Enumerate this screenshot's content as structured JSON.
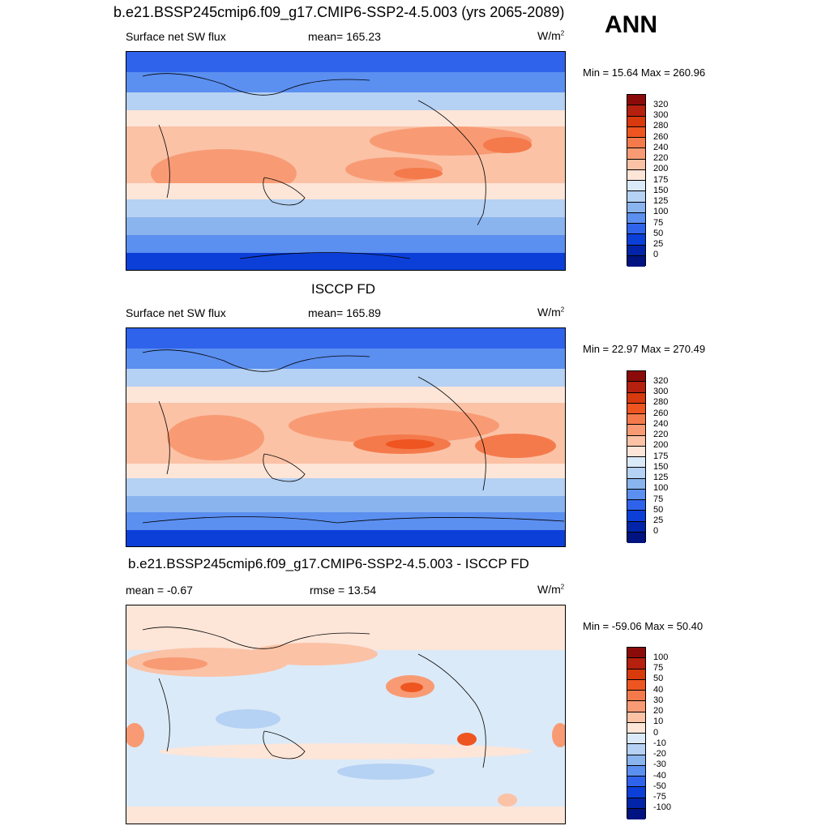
{
  "main_title": "b.e21.BSSP245cmip6.f09_g17.CMIP6-SSP2-4.5.003 (yrs 2065-2089)",
  "season": "ANN",
  "unit_base": "W/m",
  "unit_exp": "2",
  "panels": [
    {
      "title": "",
      "left_label": "Surface net SW flux",
      "center_label": "mean= 165.23",
      "minmax": "Min =  15.64 Max = 260.96",
      "ticks": [
        "320",
        "300",
        "280",
        "260",
        "240",
        "220",
        "200",
        "175",
        "150",
        "125",
        "100",
        "75",
        "50",
        "25",
        "0"
      ],
      "colors": [
        "#8b0a0a",
        "#b5200f",
        "#d8390d",
        "#ef5521",
        "#f47a4c",
        "#f89b74",
        "#fbc2a6",
        "#fde5d8",
        "#dbeaf8",
        "#b5d1f3",
        "#8ab4ee",
        "#5b8ff0",
        "#2f63ec",
        "#0c3fd8",
        "#0224a8",
        "#001380"
      ]
    },
    {
      "title": "ISCCP FD",
      "left_label": "Surface net SW flux",
      "center_label": "mean= 165.89",
      "minmax": "Min =  22.97 Max = 270.49",
      "ticks": [
        "320",
        "300",
        "280",
        "260",
        "240",
        "220",
        "200",
        "175",
        "150",
        "125",
        "100",
        "75",
        "50",
        "25",
        "0"
      ],
      "colors": [
        "#8b0a0a",
        "#b5200f",
        "#d8390d",
        "#ef5521",
        "#f47a4c",
        "#f89b74",
        "#fbc2a6",
        "#fde5d8",
        "#dbeaf8",
        "#b5d1f3",
        "#8ab4ee",
        "#5b8ff0",
        "#2f63ec",
        "#0c3fd8",
        "#0224a8",
        "#001380"
      ]
    },
    {
      "title": "b.e21.BSSP245cmip6.f09_g17.CMIP6-SSP2-4.5.003 - ISCCP FD",
      "left_label": "mean =  -0.67",
      "center_label": "rmse =  13.54",
      "minmax": "Min = -59.06 Max =  50.40",
      "ticks": [
        "100",
        "75",
        "50",
        "40",
        "30",
        "20",
        "10",
        "0",
        "-10",
        "-20",
        "-30",
        "-40",
        "-50",
        "-75",
        "-100"
      ],
      "colors": [
        "#8b0a0a",
        "#b5200f",
        "#d8390d",
        "#ef5521",
        "#f47a4c",
        "#f89b74",
        "#fbc2a6",
        "#fde5d8",
        "#dbeaf8",
        "#b5d1f3",
        "#8ab4ee",
        "#5b8ff0",
        "#2f63ec",
        "#0c3fd8",
        "#0224a8",
        "#001380"
      ]
    }
  ]
}
